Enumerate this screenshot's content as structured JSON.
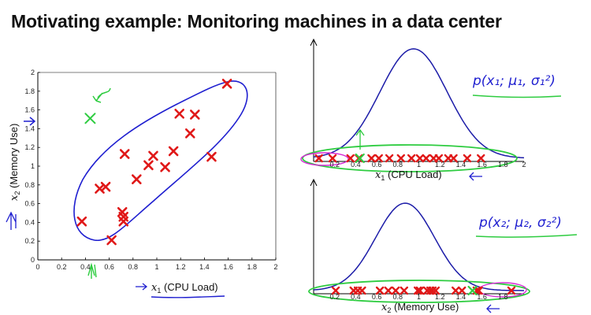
{
  "slide": {
    "title": "Motivating example: Monitoring machines in a data center"
  },
  "colors": {
    "marker": "#e01818",
    "ink_blue": "#1f1fd0",
    "ink_green": "#2ecc40",
    "ink_magenta": "#d62ad6",
    "curve": "#1c1ca8"
  },
  "chart_data": [
    {
      "type": "scatter",
      "xlabel_symbol": "x",
      "xlabel_sub": "1",
      "xlabel_text": "(CPU Load)",
      "ylabel_symbol": "x",
      "ylabel_sub": "2",
      "ylabel_text": "(Memory Use)",
      "xlim": [
        0,
        2
      ],
      "ylim": [
        0,
        2
      ],
      "xticks": [
        "0",
        "0.2",
        "0.4",
        "0.6",
        "0.8",
        "1",
        "1.2",
        "1.4",
        "1.6",
        "1.8",
        "2"
      ],
      "yticks": [
        "0",
        "0.2",
        "0.4",
        "0.6",
        "0.8",
        "1",
        "1.2",
        "1.4",
        "1.6",
        "1.8",
        "2"
      ],
      "points": [
        {
          "x": 0.37,
          "y": 0.41
        },
        {
          "x": 0.52,
          "y": 0.76
        },
        {
          "x": 0.57,
          "y": 0.78
        },
        {
          "x": 0.62,
          "y": 0.21
        },
        {
          "x": 0.71,
          "y": 0.51
        },
        {
          "x": 0.72,
          "y": 0.46
        },
        {
          "x": 0.72,
          "y": 0.41
        },
        {
          "x": 0.73,
          "y": 1.13
        },
        {
          "x": 0.83,
          "y": 0.86
        },
        {
          "x": 0.93,
          "y": 1.01
        },
        {
          "x": 0.97,
          "y": 1.11
        },
        {
          "x": 1.07,
          "y": 0.99
        },
        {
          "x": 1.14,
          "y": 1.16
        },
        {
          "x": 1.19,
          "y": 1.56
        },
        {
          "x": 1.28,
          "y": 1.35
        },
        {
          "x": 1.32,
          "y": 1.55
        },
        {
          "x": 1.46,
          "y": 1.1
        },
        {
          "x": 1.59,
          "y": 1.88
        }
      ],
      "anomaly": {
        "x": 0.44,
        "y": 1.51
      }
    },
    {
      "type": "line",
      "xlabel_symbol": "x",
      "xlabel_sub": "1",
      "xlabel_text": "(CPU Load)",
      "xlim": [
        0,
        2
      ],
      "xticks": [
        "0.2",
        "0.4",
        "0.6",
        "0.8",
        "1",
        "1.2",
        "1.4",
        "1.6",
        "1.8",
        "2"
      ],
      "density": {
        "mean": 0.95,
        "sd": 0.32
      },
      "points_x": [
        0.05,
        0.18,
        0.35,
        0.43,
        0.55,
        0.62,
        0.72,
        0.83,
        0.93,
        1.01,
        1.07,
        1.14,
        1.19,
        1.28,
        1.33,
        1.46,
        1.59
      ],
      "anomaly_x": 0.44,
      "annotation": "p(x₁; μ₁, σ₁²)"
    },
    {
      "type": "line",
      "xlabel_symbol": "x",
      "xlabel_sub": "2",
      "xlabel_text": "(Memory Use)",
      "xlim": [
        0,
        2
      ],
      "xticks": [
        "0.2",
        "0.4",
        "0.6",
        "0.8",
        "1",
        "1.2",
        "1.4",
        "1.6",
        "1.8"
      ],
      "density": {
        "mean": 0.87,
        "sd": 0.28
      },
      "points_x": [
        0.21,
        0.38,
        0.42,
        0.46,
        0.63,
        0.71,
        0.78,
        0.86,
        0.99,
        1.01,
        1.08,
        1.11,
        1.13,
        1.16,
        1.35,
        1.41,
        1.55,
        1.57,
        1.88
      ],
      "anomaly_x": 1.51,
      "annotation": "p(x₂; μ₂, σ₂²)"
    }
  ]
}
